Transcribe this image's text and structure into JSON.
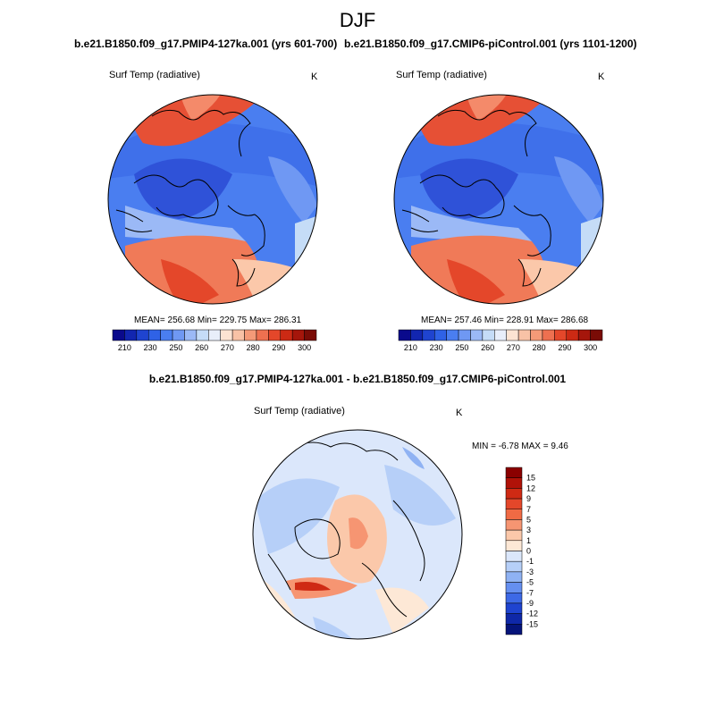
{
  "figure": {
    "season": "DJF",
    "colors": {
      "cold_deep": "#0a1f9c",
      "cold": "#2f62e6",
      "cool": "#5a8af0",
      "light_cool": "#c5dcf7",
      "neutral": "#f9dfcc",
      "warm": "#f48a6a",
      "hot": "#e23b1c",
      "coast": "#000000"
    }
  },
  "panels": [
    {
      "title": "b.e21.B1850.f09_g17.PMIP4-127ka.001 (yrs 601-700)",
      "variable": "Surf Temp (radiative)",
      "units": "K",
      "stats": "MEAN= 256.68  Min= 229.75  Max= 286.31"
    },
    {
      "title": "b.e21.B1850.f09_g17.CMIP6-piControl.001 (yrs 1101-1200)",
      "variable": "Surf Temp (radiative)",
      "units": "K",
      "stats": "MEAN= 257.46  Min= 228.91  Max= 286.68"
    }
  ],
  "abs_colorbar": {
    "labels": [
      "210",
      "230",
      "250",
      "260",
      "270",
      "280",
      "290",
      "300"
    ],
    "colors": [
      "#0a0a8c",
      "#1226b0",
      "#1f44d0",
      "#2f62e6",
      "#4a7ef0",
      "#6f98f3",
      "#9bb9f6",
      "#c5dcf7",
      "#e8eefa",
      "#fce3d2",
      "#f8c2a6",
      "#f49a78",
      "#ee7050",
      "#e4472a",
      "#cc2a14",
      "#a5160b",
      "#7a0c06"
    ]
  },
  "diff_panel": {
    "title": "b.e21.B1850.f09_g17.PMIP4-127ka.001 - b.e21.B1850.f09_g17.CMIP6-piControl.001",
    "variable": "Surf Temp (radiative)",
    "units": "K",
    "minmax": "MIN =  -6.78 MAX =   9.46"
  },
  "diff_colorbar": {
    "labels": [
      "15",
      "12",
      "9",
      "7",
      "5",
      "3",
      "1",
      "0",
      "-1",
      "-3",
      "-5",
      "-7",
      "-9",
      "-12",
      "-15"
    ],
    "colors": [
      "#8b0000",
      "#b01208",
      "#cf2a14",
      "#e4472a",
      "#f06a44",
      "#f69572",
      "#fbc8aa",
      "#fde8d6",
      "#dbe7fb",
      "#b6cff8",
      "#8fb2f3",
      "#658ff0",
      "#3d69e6",
      "#1f44d0",
      "#0f28a8",
      "#05147a"
    ]
  }
}
